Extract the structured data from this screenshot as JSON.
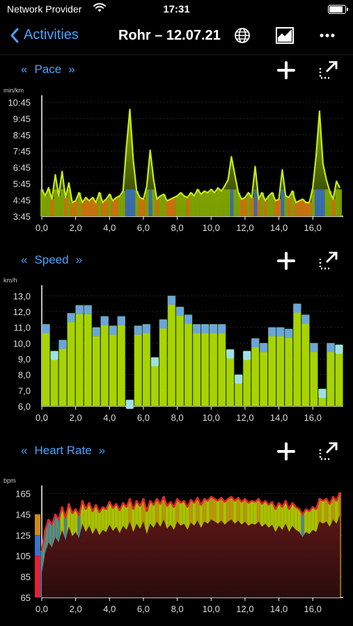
{
  "status_bar": {
    "carrier": "Network Provider",
    "time": "17:31"
  },
  "nav": {
    "back_label": "Activities",
    "title": "Rohr – 12.07.21"
  },
  "sections": {
    "pace": {
      "label": "Pace"
    },
    "speed": {
      "label": "Speed"
    },
    "heart": {
      "label": "Heart Rate"
    }
  },
  "colors": {
    "accent": "#4aa3ff",
    "lime": "#a7d400",
    "orange": "#e07a10",
    "blue": "#3a74c6",
    "red": "#e0232f"
  },
  "chart_data": [
    {
      "type": "area",
      "title": "Pace",
      "ylabel": "min/km",
      "yticks": [
        "10:45",
        "9:45",
        "8:45",
        "7:45",
        "6:45",
        "5:45",
        "4:45",
        "3:45"
      ],
      "xticks": [
        "0,0",
        "2,0",
        "4,0",
        "6,0",
        "8,0",
        "10,0",
        "12,0",
        "14,0",
        "16,0"
      ],
      "xlim": [
        0,
        17.8
      ],
      "ylim_minutes": [
        3.75,
        11.0
      ],
      "x": [
        0,
        0.2,
        0.4,
        0.6,
        0.8,
        1.0,
        1.2,
        1.4,
        1.6,
        1.8,
        2.0,
        2.2,
        2.4,
        2.6,
        2.8,
        3.0,
        3.2,
        3.4,
        3.6,
        3.8,
        4.0,
        4.2,
        4.4,
        4.6,
        4.8,
        5.0,
        5.2,
        5.4,
        5.6,
        5.8,
        6.0,
        6.2,
        6.4,
        6.6,
        6.8,
        7.0,
        7.2,
        7.4,
        7.6,
        7.8,
        8.0,
        8.2,
        8.4,
        8.6,
        8.8,
        9.0,
        9.2,
        9.4,
        9.6,
        9.8,
        10.0,
        10.2,
        10.4,
        10.6,
        10.8,
        11.0,
        11.2,
        11.4,
        11.6,
        11.8,
        12.0,
        12.2,
        12.4,
        12.6,
        12.8,
        13.0,
        13.2,
        13.4,
        13.6,
        13.8,
        14.0,
        14.2,
        14.4,
        14.6,
        14.8,
        15.0,
        15.2,
        15.4,
        15.6,
        15.8,
        16.0,
        16.2,
        16.4,
        16.6,
        16.8,
        17.0,
        17.2,
        17.4,
        17.6
      ],
      "values": [
        5.4,
        5.0,
        5.5,
        4.8,
        6.3,
        5.0,
        6.5,
        4.9,
        5.8,
        4.6,
        4.7,
        5.2,
        4.6,
        4.9,
        4.7,
        4.9,
        4.6,
        5.2,
        4.6,
        4.8,
        5.1,
        4.7,
        4.9,
        5.0,
        5.3,
        8.0,
        10.3,
        7.2,
        5.3,
        4.9,
        4.8,
        5.6,
        7.8,
        6.0,
        4.8,
        5.0,
        5.1,
        4.7,
        4.8,
        4.9,
        5.0,
        5.2,
        5.0,
        4.9,
        5.2,
        5.0,
        5.4,
        5.1,
        5.3,
        5.2,
        5.4,
        5.2,
        5.5,
        5.3,
        5.6,
        6.0,
        7.4,
        6.3,
        5.2,
        4.8,
        4.9,
        5.2,
        4.9,
        6.8,
        4.8,
        5.2,
        4.7,
        5.0,
        5.2,
        4.7,
        4.8,
        6.6,
        5.0,
        4.9,
        5.3,
        4.6,
        4.7,
        4.8,
        4.6,
        4.6,
        5.5,
        7.5,
        10.2,
        7.0,
        6.0,
        5.3,
        4.8,
        5.9,
        5.5
      ]
    },
    {
      "type": "bar",
      "title": "Speed",
      "ylabel": "km/h",
      "yticks": [
        "13,0",
        "12,0",
        "11,0",
        "10,0",
        "9,0",
        "8,0",
        "7,0",
        "6,0"
      ],
      "xticks": [
        "0,0",
        "2,0",
        "4,0",
        "6,0",
        "8,0",
        "10,0",
        "12,0",
        "14,0",
        "16,0"
      ],
      "xlim": [
        0,
        17.8
      ],
      "ylim": [
        6.0,
        13.5
      ],
      "values": [
        11.2,
        9.5,
        10.2,
        11.9,
        12.4,
        12.4,
        11.0,
        11.7,
        11.1,
        11.7,
        6.4,
        11.1,
        11.2,
        9.1,
        11.5,
        13.0,
        12.3,
        11.8,
        11.2,
        11.2,
        11.2,
        11.2,
        9.6,
        8.0,
        9.5,
        10.3,
        10.0,
        11.0,
        11.0,
        10.9,
        12.5,
        11.8,
        10.0,
        7.1,
        10.0,
        9.9
      ]
    },
    {
      "type": "area",
      "title": "Heart Rate",
      "ylabel": "bpm",
      "yticks": [
        "165",
        "145",
        "125",
        "105",
        "85",
        "65"
      ],
      "xticks": [
        "0,0",
        "2,0",
        "4,0",
        "6,0",
        "8,0",
        "10,0",
        "12,0",
        "14,0",
        "16,0"
      ],
      "xlim": [
        0,
        17.8
      ],
      "ylim": [
        65,
        170
      ],
      "x": [
        0,
        0.2,
        0.4,
        0.6,
        0.8,
        1.0,
        1.2,
        1.4,
        1.6,
        1.8,
        2.0,
        2.2,
        2.4,
        2.6,
        2.8,
        3.0,
        3.2,
        3.4,
        3.6,
        3.8,
        4.0,
        4.2,
        4.4,
        4.6,
        4.8,
        5.0,
        5.2,
        5.4,
        5.6,
        5.8,
        6.0,
        6.2,
        6.4,
        6.6,
        6.8,
        7.0,
        7.2,
        7.4,
        7.6,
        7.8,
        8.0,
        8.2,
        8.4,
        8.6,
        8.8,
        9.0,
        9.2,
        9.4,
        9.6,
        9.8,
        10.0,
        10.2,
        10.4,
        10.6,
        10.8,
        11.0,
        11.2,
        11.4,
        11.6,
        11.8,
        12.0,
        12.2,
        12.4,
        12.6,
        12.8,
        13.0,
        13.2,
        13.4,
        13.6,
        13.8,
        14.0,
        14.2,
        14.4,
        14.6,
        14.8,
        15.0,
        15.2,
        15.4,
        15.6,
        15.8,
        16.0,
        16.2,
        16.4,
        16.6,
        16.8,
        17.0,
        17.2,
        17.4,
        17.6
      ],
      "values": [
        110,
        130,
        140,
        135,
        145,
        140,
        152,
        142,
        155,
        146,
        150,
        144,
        158,
        150,
        156,
        148,
        154,
        147,
        152,
        150,
        157,
        151,
        155,
        149,
        156,
        152,
        160,
        150,
        158,
        153,
        160,
        148,
        158,
        154,
        160,
        155,
        162,
        153,
        157,
        152,
        160,
        156,
        158,
        152,
        159,
        156,
        161,
        154,
        160,
        158,
        162,
        160,
        158,
        161,
        157,
        160,
        162,
        158,
        161,
        157,
        160,
        156,
        158,
        157,
        160,
        155,
        158,
        154,
        157,
        150,
        156,
        152,
        158,
        150,
        156,
        152,
        150,
        145,
        150,
        148,
        152,
        150,
        160,
        158,
        160,
        155,
        162,
        158,
        166
      ]
    }
  ]
}
